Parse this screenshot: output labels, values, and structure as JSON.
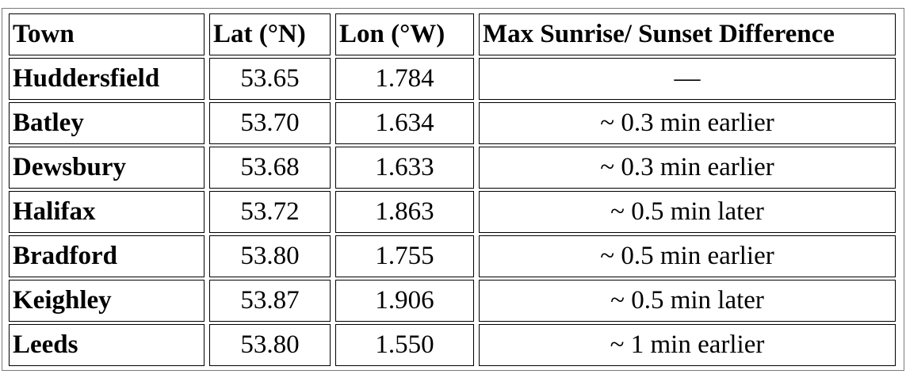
{
  "table": {
    "headers": [
      "Town",
      "Lat (°N)",
      "Lon (°W)",
      "Max Sunrise/ Sunset Difference"
    ],
    "rows": [
      {
        "town": "Huddersfield",
        "lat": "53.65",
        "lon": "1.784",
        "diff": "—"
      },
      {
        "town": "Batley",
        "lat": "53.70",
        "lon": "1.634",
        "diff": "~ 0.3 min earlier"
      },
      {
        "town": "Dewsbury",
        "lat": "53.68",
        "lon": "1.633",
        "diff": "~ 0.3 min earlier"
      },
      {
        "town": "Halifax",
        "lat": "53.72",
        "lon": "1.863",
        "diff": "~ 0.5 min later"
      },
      {
        "town": "Bradford",
        "lat": "53.80",
        "lon": "1.755",
        "diff": "~ 0.5 min earlier"
      },
      {
        "town": "Keighley",
        "lat": "53.87",
        "lon": "1.906",
        "diff": "~ 0.5 min later"
      },
      {
        "town": "Leeds",
        "lat": "53.80",
        "lon": "1.550",
        "diff": "~ 1 min earlier"
      }
    ]
  }
}
